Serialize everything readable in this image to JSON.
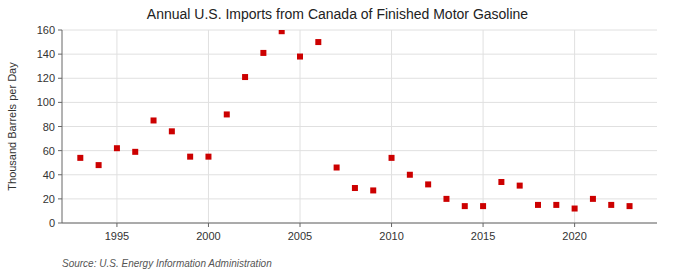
{
  "chart_data": {
    "type": "scatter",
    "title": "Annual U.S. Imports from Canada of Finished Motor Gasoline",
    "ylabel": "Thousand Barrels per Day",
    "source": "Source: U.S. Energy Information Administration",
    "x": [
      1993,
      1994,
      1995,
      1996,
      1997,
      1998,
      1999,
      2000,
      2001,
      2002,
      2003,
      2004,
      2005,
      2006,
      2007,
      2008,
      2009,
      2010,
      2011,
      2012,
      2013,
      2014,
      2015,
      2016,
      2017,
      2018,
      2019,
      2020,
      2021,
      2022,
      2023
    ],
    "values": [
      54,
      48,
      62,
      59,
      85,
      76,
      55,
      55,
      90,
      121,
      141,
      159,
      138,
      150,
      46,
      29,
      27,
      54,
      40,
      32,
      20,
      14,
      14,
      34,
      31,
      15,
      15,
      12,
      20,
      15,
      14
    ],
    "color": "#cc0000",
    "marker": "square",
    "xlim": [
      1992,
      2024.5
    ],
    "ylim": [
      0,
      160
    ],
    "xticks": [
      1995,
      2000,
      2005,
      2010,
      2015,
      2020
    ],
    "yticks": [
      0,
      20,
      40,
      60,
      80,
      100,
      120,
      140,
      160
    ],
    "grid": true
  }
}
